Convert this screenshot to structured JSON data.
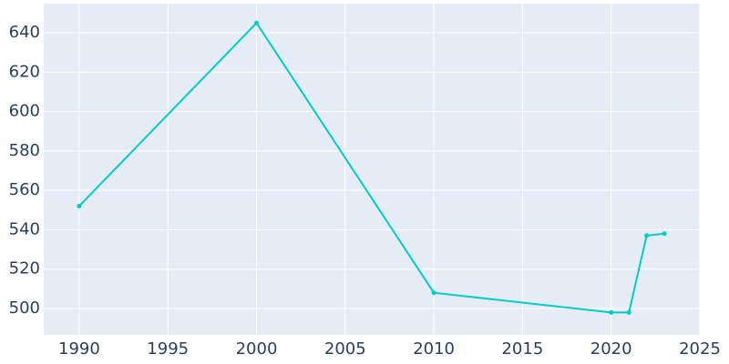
{
  "chart_data": {
    "type": "line",
    "x": [
      1990,
      2000,
      2010,
      2020,
      2021,
      2022,
      2023
    ],
    "series": [
      {
        "color": "#00cccc",
        "values": [
          552,
          645,
          508,
          498,
          498,
          537,
          538
        ]
      }
    ],
    "xlim": [
      1988,
      2025
    ],
    "xticks": [
      1990,
      1995,
      2000,
      2005,
      2010,
      2015,
      2020,
      2025
    ],
    "ylim": [
      486.6,
      654.8
    ],
    "yticks": [
      500,
      520,
      540,
      560,
      580,
      600,
      620,
      640
    ],
    "grid": true
  }
}
